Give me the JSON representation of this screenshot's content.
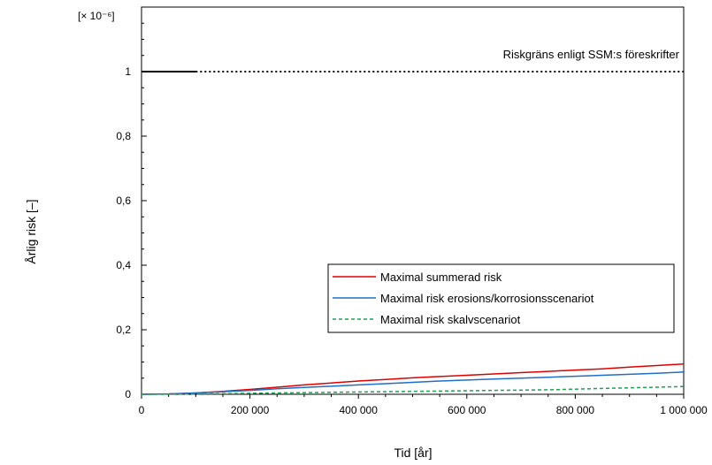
{
  "chart_data": {
    "type": "line",
    "ylabel": "Årlig risk [–]",
    "xlabel": "Tid [år]",
    "yscale_label": "[× 10⁻⁶]",
    "xlim": [
      0,
      1000000
    ],
    "ylim": [
      0,
      1.2
    ],
    "x_ticks": [
      0,
      200000,
      400000,
      600000,
      800000,
      1000000
    ],
    "x_tick_labels": [
      "0",
      "200 000",
      "400 000",
      "600 000",
      "800 000",
      "1 000 000"
    ],
    "y_ticks": [
      0,
      0.2,
      0.4,
      0.6,
      0.8,
      1
    ],
    "y_tick_labels": [
      "0",
      "0,2",
      "0,4",
      "0,6",
      "0,8",
      "1"
    ],
    "legend_position": "lower-right",
    "reference_line": {
      "label": "Riskgräns enligt SSM:s föreskrifter",
      "y": 1,
      "solid_until": 100000,
      "color": "#000000"
    },
    "x": [
      0,
      50000,
      100000,
      150000,
      200000,
      250000,
      300000,
      350000,
      400000,
      450000,
      500000,
      550000,
      600000,
      650000,
      700000,
      750000,
      800000,
      850000,
      900000,
      950000,
      1000000
    ],
    "series": [
      {
        "name": "Maximal summerad risk",
        "color": "#e00000",
        "dash": "solid",
        "values": [
          0.0,
          0.001,
          0.004,
          0.009,
          0.015,
          0.022,
          0.029,
          0.035,
          0.041,
          0.046,
          0.051,
          0.055,
          0.059,
          0.063,
          0.067,
          0.071,
          0.075,
          0.079,
          0.084,
          0.089,
          0.094
        ]
      },
      {
        "name": "Maximal risk erosions/korrosionsscenariot",
        "color": "#1f6fc6",
        "dash": "solid",
        "values": [
          0.0,
          0.001,
          0.004,
          0.008,
          0.012,
          0.017,
          0.021,
          0.025,
          0.029,
          0.033,
          0.037,
          0.041,
          0.044,
          0.047,
          0.05,
          0.053,
          0.056,
          0.059,
          0.062,
          0.065,
          0.069
        ]
      },
      {
        "name": "Maximal risk skalvscenariot",
        "color": "#1fa050",
        "dash": "dashed",
        "values": [
          0.0,
          0.0,
          0.001,
          0.002,
          0.003,
          0.004,
          0.005,
          0.006,
          0.007,
          0.008,
          0.009,
          0.01,
          0.011,
          0.012,
          0.013,
          0.014,
          0.016,
          0.018,
          0.02,
          0.022,
          0.024
        ]
      }
    ]
  }
}
